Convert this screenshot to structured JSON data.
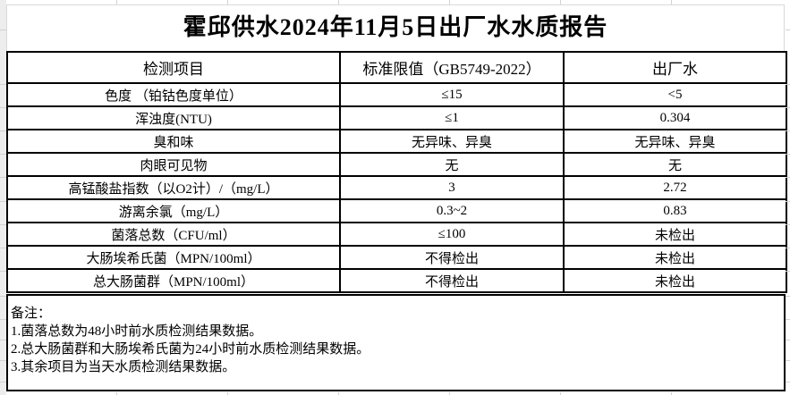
{
  "title": "霍邱供水2024年11月5日出厂水水质报告",
  "table": {
    "headers": [
      "检测项目",
      "标准限值（GB5749-2022）",
      "出厂水"
    ],
    "rows": [
      {
        "item": "色度 （铂钴色度单位）",
        "limit": "≤15",
        "value": "<5"
      },
      {
        "item": "浑浊度(NTU)",
        "limit": "≤1",
        "value": "0.304"
      },
      {
        "item": "臭和味",
        "limit": "无异味、异臭",
        "value": "无异味、异臭"
      },
      {
        "item": "肉眼可见物",
        "limit": "无",
        "value": "无"
      },
      {
        "item": "高锰酸盐指数（以O2计）/（mg/L）",
        "limit": "3",
        "value": "2.72"
      },
      {
        "item": "游离余氯（mg/L）",
        "limit": "0.3~2",
        "value": "0.83"
      },
      {
        "item": "菌落总数（CFU/ml）",
        "limit": "≤100",
        "value": "未检出"
      },
      {
        "item": "大肠埃希氏菌（MPN/100ml）",
        "limit": "不得检出",
        "value": "未检出"
      },
      {
        "item": "总大肠菌群（MPN/100ml）",
        "limit": "不得检出",
        "value": "未检出"
      }
    ]
  },
  "notes": {
    "label": "备注：",
    "items": [
      "1.菌落总数为48小时前水质检测结果数据。",
      "2.总大肠菌群和大肠埃希氏菌为24小时前水质检测结果数据。",
      "3.其余项目为当天水质检测结果数据。"
    ]
  },
  "colors": {
    "table_border": "#000000",
    "gridline": "#d2d2d2",
    "background": "#ffffff",
    "text": "#000000"
  }
}
